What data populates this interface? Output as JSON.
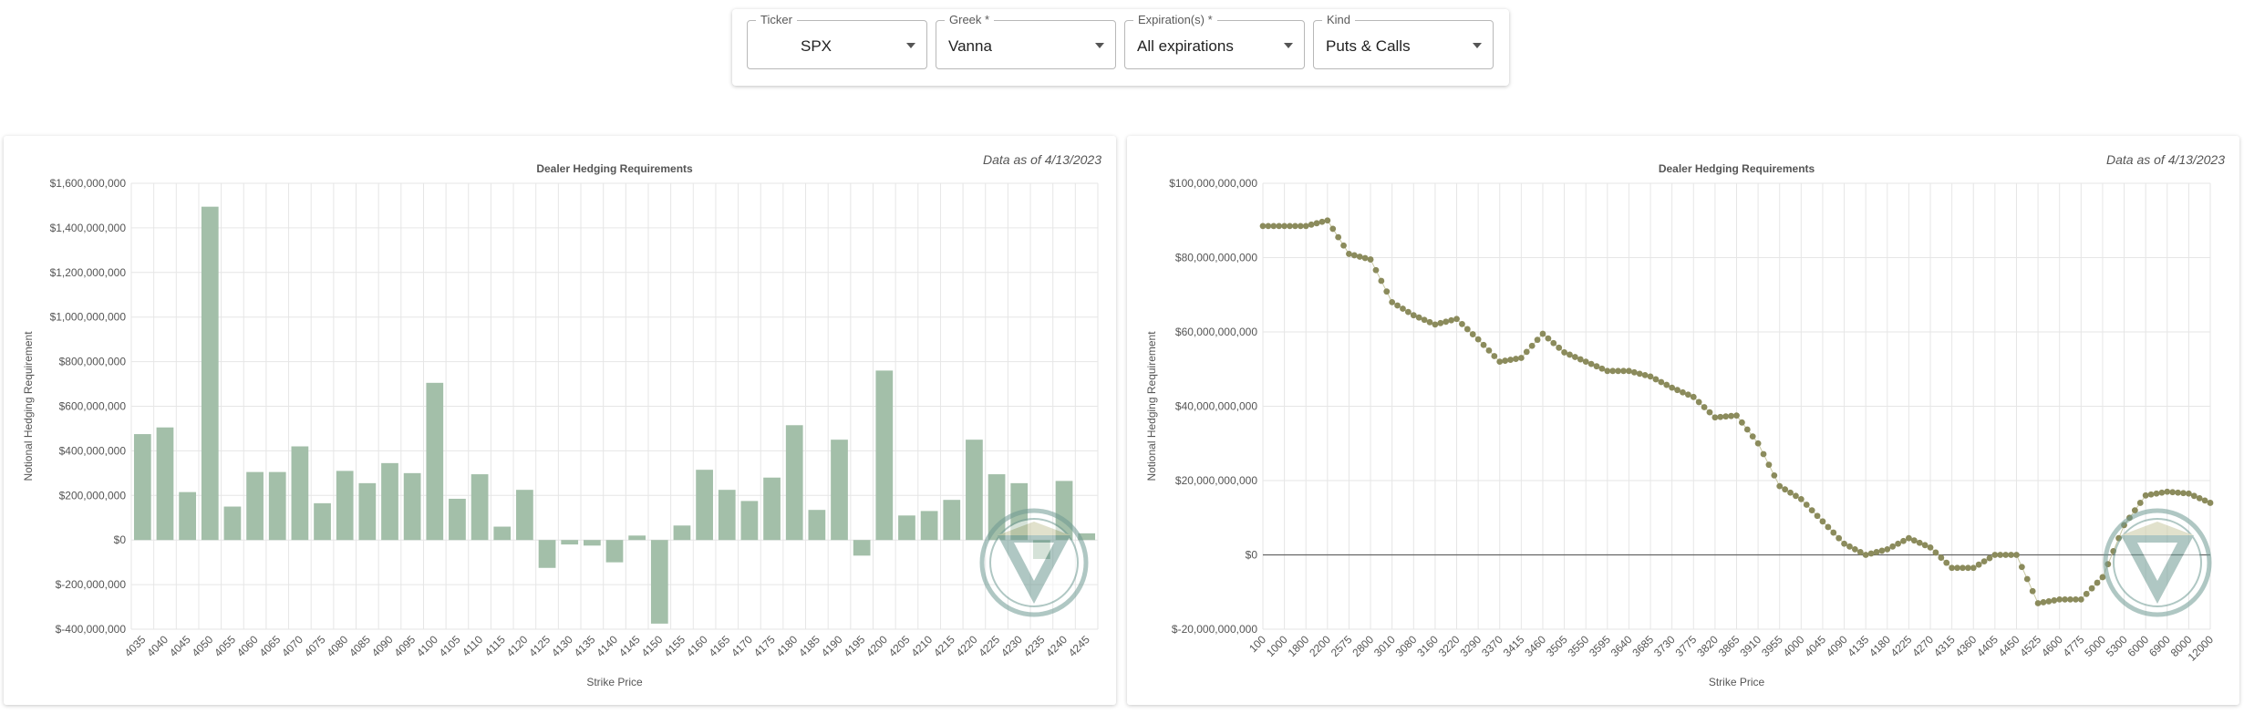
{
  "filters": {
    "ticker": {
      "label": "Ticker",
      "value": "SPX"
    },
    "greek": {
      "label": "Greek *",
      "value": "Vanna"
    },
    "expiration": {
      "label": "Expiration(s) *",
      "value": "All expirations"
    },
    "kind": {
      "label": "Kind",
      "value": "Puts & Calls"
    }
  },
  "colors": {
    "bar": "#a3bfa9",
    "dot": "#8b8b5c",
    "line": "#c9c9a4",
    "zero": "#666666",
    "grid": "#e6e6e6",
    "logo": "#6f9a93"
  },
  "icons": {
    "watermark": "vanna-logo-icon",
    "dropdown": "chevron-down-icon"
  },
  "chart_data": [
    {
      "type": "bar",
      "title": "Dealer Hedging Requirements",
      "as_of": "Data as of 4/13/2023",
      "xlabel": "Strike Price",
      "ylabel": "Notional Hedging Requirement",
      "ylim": [
        -400000000,
        1600000000
      ],
      "yticks": [
        "$1,600,000,000",
        "$1,400,000,000",
        "$1,200,000,000",
        "$1,000,000,000",
        "$800,000,000",
        "$600,000,000",
        "$400,000,000",
        "$200,000,000",
        "$0",
        "$-200,000,000",
        "$-400,000,000"
      ],
      "grid": true,
      "categories": [
        "4035",
        "4040",
        "4045",
        "4050",
        "4055",
        "4060",
        "4065",
        "4070",
        "4075",
        "4080",
        "4085",
        "4090",
        "4095",
        "4100",
        "4105",
        "4110",
        "4115",
        "4120",
        "4125",
        "4130",
        "4135",
        "4140",
        "4145",
        "4150",
        "4155",
        "4160",
        "4165",
        "4170",
        "4175",
        "4180",
        "4185",
        "4190",
        "4195",
        "4200",
        "4205",
        "4210",
        "4215",
        "4220",
        "4225",
        "4230",
        "4235",
        "4240",
        "4245"
      ],
      "values": [
        475000000,
        505000000,
        215000000,
        1495000000,
        150000000,
        305000000,
        305000000,
        420000000,
        165000000,
        310000000,
        255000000,
        345000000,
        300000000,
        705000000,
        185000000,
        295000000,
        60000000,
        225000000,
        -125000000,
        -20000000,
        -25000000,
        -100000000,
        20000000,
        -375000000,
        65000000,
        315000000,
        225000000,
        175000000,
        280000000,
        515000000,
        135000000,
        450000000,
        -70000000,
        760000000,
        110000000,
        130000000,
        180000000,
        450000000,
        295000000,
        255000000,
        -85000000,
        265000000,
        30000000
      ]
    },
    {
      "type": "scatter",
      "title": "Dealer Hedging Requirements",
      "as_of": "Data as of 4/13/2023",
      "xlabel": "Strike Price",
      "ylabel": "Notional Hedging Requirement",
      "ylim": [
        -20000000000,
        100000000000
      ],
      "yticks": [
        "$100,000,000,000",
        "$80,000,000,000",
        "$60,000,000,000",
        "$40,000,000,000",
        "$20,000,000,000",
        "$0",
        "$-20,000,000,000"
      ],
      "grid": true,
      "xticks": [
        "100",
        "1000",
        "1800",
        "2200",
        "2575",
        "2800",
        "3010",
        "3080",
        "3160",
        "3220",
        "3290",
        "3370",
        "3415",
        "3460",
        "3505",
        "3550",
        "3595",
        "3640",
        "3685",
        "3730",
        "3775",
        "3820",
        "3865",
        "3910",
        "3955",
        "4000",
        "4045",
        "4090",
        "4135",
        "4180",
        "4225",
        "4270",
        "4315",
        "4360",
        "4405",
        "4450",
        "4525",
        "4600",
        "4775",
        "5000",
        "5300",
        "6000",
        "6900",
        "8000",
        "12000"
      ],
      "y_by_tick": [
        88.5,
        88.5,
        88.5,
        90,
        81,
        79.5,
        68,
        64.5,
        62,
        63.5,
        58,
        52,
        53,
        59.5,
        54.5,
        52,
        49.5,
        49.5,
        48,
        45,
        42.5,
        37,
        37.5,
        30,
        18.5,
        15,
        9,
        3,
        0,
        1.5,
        4.5,
        2,
        -3.5,
        -3.5,
        0,
        0,
        -13,
        -12,
        -12,
        -6,
        8,
        16,
        17,
        16.5,
        14
      ]
    }
  ]
}
